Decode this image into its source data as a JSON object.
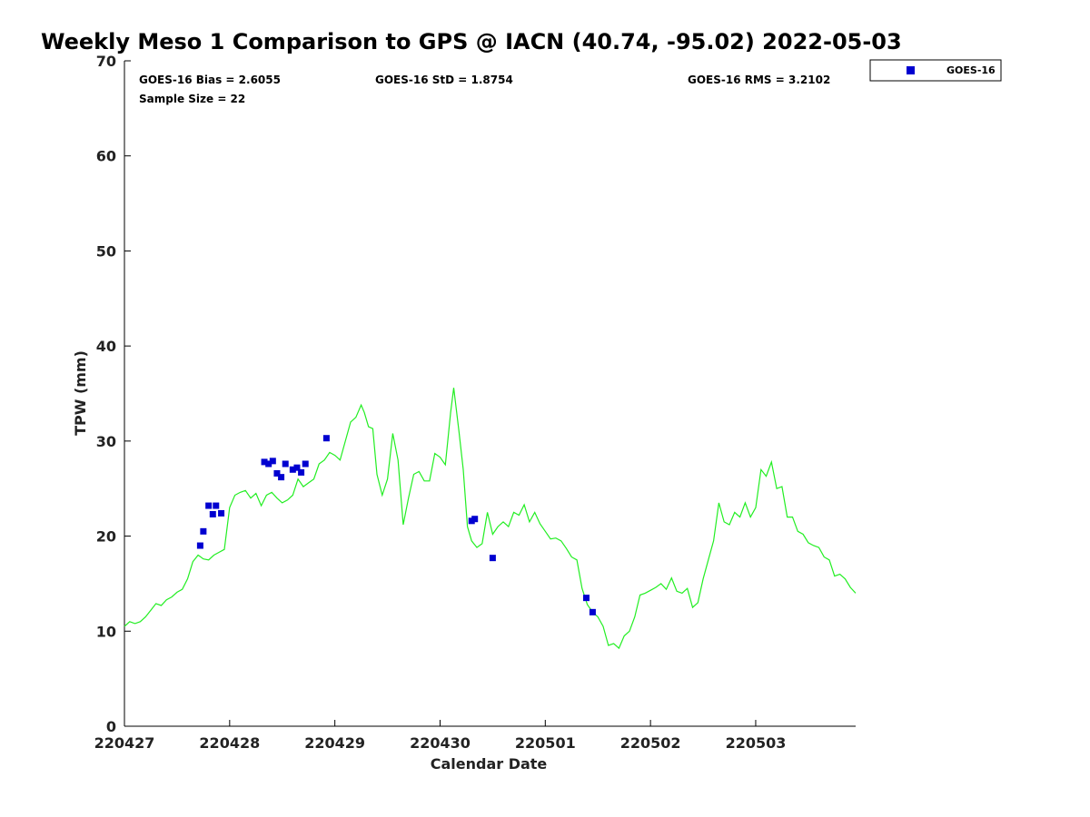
{
  "chart_data": {
    "type": "scatter",
    "title": "Weekly Meso 1 Comparison to GPS @ IACN (40.74, -95.02) 2022-05-03",
    "xlabel": "Calendar Date",
    "ylabel": "TPW (mm)",
    "ylim": [
      0,
      70
    ],
    "xlim": [
      0,
      6.95
    ],
    "yticks": [
      0,
      10,
      20,
      30,
      40,
      50,
      60,
      70
    ],
    "xticks": [
      {
        "value": 0,
        "label": "220427"
      },
      {
        "value": 1,
        "label": "220428"
      },
      {
        "value": 2,
        "label": "220429"
      },
      {
        "value": 3,
        "label": "220430"
      },
      {
        "value": 4,
        "label": "220501"
      },
      {
        "value": 5,
        "label": "220502"
      },
      {
        "value": 6,
        "label": "220503"
      }
    ],
    "grid": false,
    "legend_position": "top-right",
    "stats": {
      "bias": "GOES-16 Bias = 2.6055",
      "std": "GOES-16 StD = 1.8754",
      "rms": "GOES-16 RMS = 3.2102",
      "sample_size": "Sample Size = 22"
    },
    "series": [
      {
        "name": "GOES-16",
        "kind": "scatter",
        "color": "#0000d0",
        "marker": "square",
        "x": [
          0.72,
          0.75,
          0.8,
          0.84,
          0.87,
          0.92,
          1.33,
          1.37,
          1.41,
          1.45,
          1.49,
          1.53,
          1.6,
          1.64,
          1.68,
          1.72,
          1.92,
          3.3,
          3.33,
          3.5,
          4.39,
          4.45
        ],
        "y": [
          19.0,
          20.5,
          23.2,
          22.3,
          23.2,
          22.4,
          27.8,
          27.6,
          27.9,
          26.6,
          26.2,
          27.6,
          27.0,
          27.2,
          26.7,
          27.6,
          30.3,
          21.6,
          21.8,
          17.7,
          13.5,
          12.0
        ]
      },
      {
        "name": "GPS",
        "kind": "line",
        "color": "#22ee22",
        "x": [
          0.0,
          0.05,
          0.1,
          0.15,
          0.2,
          0.25,
          0.3,
          0.35,
          0.4,
          0.45,
          0.5,
          0.55,
          0.6,
          0.65,
          0.7,
          0.75,
          0.8,
          0.85,
          0.9,
          0.95,
          1.0,
          1.05,
          1.1,
          1.15,
          1.2,
          1.25,
          1.3,
          1.35,
          1.4,
          1.45,
          1.5,
          1.55,
          1.6,
          1.65,
          1.7,
          1.75,
          1.8,
          1.85,
          1.9,
          1.95,
          2.0,
          2.05,
          2.1,
          2.15,
          2.2,
          2.25,
          2.28,
          2.32,
          2.36,
          2.4,
          2.45,
          2.5,
          2.55,
          2.6,
          2.65,
          2.7,
          2.75,
          2.8,
          2.85,
          2.9,
          2.95,
          3.0,
          3.05,
          3.1,
          3.13,
          3.18,
          3.22,
          3.26,
          3.3,
          3.35,
          3.4,
          3.45,
          3.5,
          3.55,
          3.6,
          3.65,
          3.7,
          3.75,
          3.8,
          3.85,
          3.9,
          3.95,
          4.0,
          4.05,
          4.1,
          4.15,
          4.2,
          4.25,
          4.3,
          4.35,
          4.4,
          4.45,
          4.5,
          4.55,
          4.6,
          4.65,
          4.7,
          4.75,
          4.8,
          4.85,
          4.9,
          4.95,
          5.0,
          5.05,
          5.1,
          5.15,
          5.2,
          5.25,
          5.3,
          5.35,
          5.4,
          5.45,
          5.5,
          5.55,
          5.6,
          5.65,
          5.7,
          5.75,
          5.8,
          5.85,
          5.9,
          5.95,
          6.0,
          6.05,
          6.1,
          6.15,
          6.2,
          6.25,
          6.3,
          6.35,
          6.4,
          6.45,
          6.5,
          6.55,
          6.6,
          6.65,
          6.7,
          6.75,
          6.8,
          6.85,
          6.9,
          6.95
        ],
        "y": [
          10.5,
          11.0,
          10.8,
          11.0,
          11.5,
          12.2,
          12.9,
          12.7,
          13.3,
          13.6,
          14.1,
          14.4,
          15.5,
          17.3,
          18.0,
          17.6,
          17.5,
          18.0,
          18.3,
          18.6,
          23.0,
          24.3,
          24.6,
          24.8,
          24.0,
          24.5,
          23.2,
          24.3,
          24.6,
          24.0,
          23.5,
          23.8,
          24.3,
          26.0,
          25.2,
          25.6,
          26.0,
          27.6,
          28.0,
          28.8,
          28.5,
          28.0,
          30.0,
          32.0,
          32.5,
          33.8,
          33.0,
          31.5,
          31.3,
          26.5,
          24.3,
          26.0,
          30.8,
          28.0,
          21.2,
          24.0,
          26.5,
          26.8,
          25.8,
          25.8,
          28.7,
          28.3,
          27.5,
          33.0,
          35.6,
          31.0,
          27.0,
          21.0,
          19.5,
          18.8,
          19.2,
          22.5,
          20.2,
          21.0,
          21.5,
          21.0,
          22.5,
          22.2,
          23.3,
          21.5,
          22.5,
          21.3,
          20.5,
          19.7,
          19.8,
          19.5,
          18.7,
          17.8,
          17.5,
          14.5,
          12.8,
          12.0,
          11.5,
          10.5,
          8.5,
          8.7,
          8.2,
          9.5,
          10.0,
          11.5,
          13.8,
          14.0,
          14.3,
          14.6,
          15.0,
          14.4,
          15.6,
          14.2,
          14.0,
          14.5,
          12.5,
          13.0,
          15.5,
          17.5,
          19.5,
          23.5,
          21.5,
          21.2,
          22.5,
          22.0,
          23.5,
          22.0,
          23.0,
          27.0,
          26.3,
          27.8,
          25.0,
          25.2,
          22.0,
          22.0,
          20.5,
          20.2,
          19.3,
          19.0,
          18.8,
          17.8,
          17.5,
          15.8,
          16.0,
          15.5,
          14.6,
          14.0
        ]
      }
    ]
  }
}
